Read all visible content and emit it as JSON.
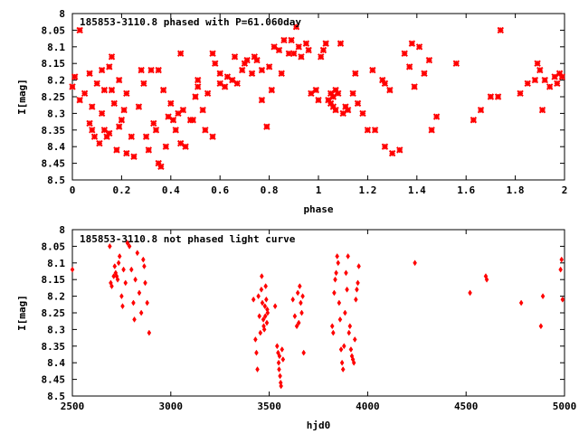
{
  "colors": {
    "points": "#ff0000",
    "axes": "#000000",
    "background": "#ffffff"
  },
  "chart_data": [
    {
      "type": "scatter",
      "title": "185853-3110.8 phased with P=61.060day",
      "xlabel": "phase",
      "ylabel": "I[mag]",
      "xlim": [
        0,
        2
      ],
      "ylim": [
        8.5,
        8.0
      ],
      "y_inverted": true,
      "grid": false,
      "x_ticks": [
        "0",
        "0.2",
        "0.4",
        "0.6",
        "0.8",
        "1",
        "1.2",
        "1.4",
        "1.6",
        "1.8",
        "2"
      ],
      "y_ticks": [
        "8",
        "8.05",
        "8.1",
        "8.15",
        "8.2",
        "8.25",
        "8.3",
        "8.35",
        "8.4",
        "8.45",
        "8.5"
      ],
      "marker": "x",
      "points": [
        [
          0.0,
          8.22
        ],
        [
          0.01,
          8.19
        ],
        [
          0.03,
          8.26
        ],
        [
          0.03,
          8.05
        ],
        [
          0.05,
          8.24
        ],
        [
          0.07,
          8.18
        ],
        [
          0.07,
          8.33
        ],
        [
          0.08,
          8.35
        ],
        [
          0.08,
          8.28
        ],
        [
          0.09,
          8.37
        ],
        [
          0.1,
          8.21
        ],
        [
          0.11,
          8.39
        ],
        [
          0.12,
          8.17
        ],
        [
          0.12,
          8.3
        ],
        [
          0.13,
          8.35
        ],
        [
          0.13,
          8.23
        ],
        [
          0.14,
          8.37
        ],
        [
          0.15,
          8.16
        ],
        [
          0.15,
          8.36
        ],
        [
          0.16,
          8.13
        ],
        [
          0.16,
          8.23
        ],
        [
          0.17,
          8.27
        ],
        [
          0.18,
          8.41
        ],
        [
          0.19,
          8.34
        ],
        [
          0.19,
          8.2
        ],
        [
          0.2,
          8.32
        ],
        [
          0.21,
          8.29
        ],
        [
          0.22,
          8.42
        ],
        [
          0.22,
          8.24
        ],
        [
          0.24,
          8.37
        ],
        [
          0.25,
          8.43
        ],
        [
          0.27,
          8.28
        ],
        [
          0.28,
          8.17
        ],
        [
          0.29,
          8.21
        ],
        [
          0.3,
          8.37
        ],
        [
          0.31,
          8.41
        ],
        [
          0.32,
          8.17
        ],
        [
          0.33,
          8.33
        ],
        [
          0.34,
          8.35
        ],
        [
          0.35,
          8.45
        ],
        [
          0.35,
          8.17
        ],
        [
          0.36,
          8.46
        ],
        [
          0.37,
          8.23
        ],
        [
          0.38,
          8.4
        ],
        [
          0.39,
          8.31
        ],
        [
          0.4,
          8.27
        ],
        [
          0.41,
          8.32
        ],
        [
          0.42,
          8.35
        ],
        [
          0.43,
          8.3
        ],
        [
          0.44,
          8.39
        ],
        [
          0.44,
          8.12
        ],
        [
          0.45,
          8.29
        ],
        [
          0.46,
          8.4
        ],
        [
          0.48,
          8.32
        ],
        [
          0.49,
          8.32
        ],
        [
          0.5,
          8.25
        ],
        [
          0.51,
          8.22
        ],
        [
          0.51,
          8.2
        ],
        [
          0.53,
          8.29
        ],
        [
          0.54,
          8.35
        ],
        [
          0.55,
          8.24
        ],
        [
          0.57,
          8.37
        ],
        [
          0.57,
          8.12
        ],
        [
          0.58,
          8.15
        ],
        [
          0.6,
          8.18
        ],
        [
          0.6,
          8.21
        ],
        [
          0.62,
          8.22
        ],
        [
          0.63,
          8.19
        ],
        [
          0.65,
          8.2
        ],
        [
          0.66,
          8.13
        ],
        [
          0.67,
          8.21
        ],
        [
          0.69,
          8.17
        ],
        [
          0.7,
          8.15
        ],
        [
          0.71,
          8.14
        ],
        [
          0.73,
          8.18
        ],
        [
          0.74,
          8.13
        ],
        [
          0.75,
          8.14
        ],
        [
          0.77,
          8.17
        ],
        [
          0.77,
          8.26
        ],
        [
          0.79,
          8.34
        ],
        [
          0.8,
          8.16
        ],
        [
          0.81,
          8.23
        ],
        [
          0.82,
          8.1
        ],
        [
          0.84,
          8.11
        ],
        [
          0.85,
          8.18
        ],
        [
          0.86,
          8.08
        ],
        [
          0.88,
          8.12
        ],
        [
          0.89,
          8.08
        ],
        [
          0.9,
          8.12
        ],
        [
          0.91,
          8.04
        ],
        [
          0.92,
          8.1
        ],
        [
          0.93,
          8.13
        ],
        [
          0.95,
          8.09
        ],
        [
          0.96,
          8.11
        ],
        [
          0.97,
          8.24
        ],
        [
          0.99,
          8.23
        ],
        [
          1.0,
          8.26
        ],
        [
          1.01,
          8.13
        ],
        [
          1.02,
          8.11
        ],
        [
          1.03,
          8.09
        ],
        [
          1.04,
          8.26
        ],
        [
          1.05,
          8.24
        ],
        [
          1.05,
          8.27
        ],
        [
          1.06,
          8.28
        ],
        [
          1.06,
          8.25
        ],
        [
          1.07,
          8.23
        ],
        [
          1.07,
          8.29
        ],
        [
          1.08,
          8.24
        ],
        [
          1.09,
          8.09
        ],
        [
          1.1,
          8.3
        ],
        [
          1.11,
          8.28
        ],
        [
          1.12,
          8.29
        ],
        [
          1.14,
          8.24
        ],
        [
          1.15,
          8.18
        ],
        [
          1.16,
          8.27
        ],
        [
          1.18,
          8.3
        ],
        [
          1.2,
          8.35
        ],
        [
          1.22,
          8.17
        ],
        [
          1.23,
          8.35
        ],
        [
          1.26,
          8.2
        ],
        [
          1.27,
          8.21
        ],
        [
          1.27,
          8.4
        ],
        [
          1.29,
          8.23
        ],
        [
          1.3,
          8.42
        ],
        [
          1.33,
          8.41
        ],
        [
          1.35,
          8.12
        ],
        [
          1.37,
          8.16
        ],
        [
          1.38,
          8.09
        ],
        [
          1.39,
          8.22
        ],
        [
          1.41,
          8.1
        ],
        [
          1.43,
          8.18
        ],
        [
          1.45,
          8.14
        ],
        [
          1.46,
          8.35
        ],
        [
          1.48,
          8.31
        ],
        [
          1.56,
          8.15
        ],
        [
          1.63,
          8.32
        ],
        [
          1.66,
          8.29
        ],
        [
          1.7,
          8.25
        ],
        [
          1.73,
          8.25
        ],
        [
          1.74,
          8.05
        ],
        [
          1.82,
          8.24
        ],
        [
          1.85,
          8.21
        ],
        [
          1.88,
          8.2
        ],
        [
          1.89,
          8.15
        ],
        [
          1.9,
          8.17
        ],
        [
          1.91,
          8.29
        ],
        [
          1.92,
          8.2
        ],
        [
          1.94,
          8.22
        ],
        [
          1.96,
          8.19
        ],
        [
          1.97,
          8.21
        ],
        [
          1.98,
          8.18
        ],
        [
          1.99,
          8.19
        ]
      ]
    },
    {
      "type": "scatter",
      "title": "185853-3110.8 not phased light curve",
      "xlabel": "hjd0",
      "ylabel": "I[mag]",
      "xlim": [
        2500,
        5000
      ],
      "ylim": [
        8.5,
        8.0
      ],
      "y_inverted": true,
      "grid": false,
      "x_ticks": [
        "2500",
        "3000",
        "3500",
        "4000",
        "4500",
        "5000"
      ],
      "y_ticks": [
        "8",
        "8.05",
        "8.1",
        "8.15",
        "8.2",
        "8.25",
        "8.3",
        "8.35",
        "8.4",
        "8.45",
        "8.5"
      ],
      "marker": "diamond",
      "points": [
        [
          2500,
          8.12
        ],
        [
          2690,
          8.05
        ],
        [
          2695,
          8.16
        ],
        [
          2700,
          8.17
        ],
        [
          2710,
          8.14
        ],
        [
          2715,
          8.11
        ],
        [
          2720,
          8.13
        ],
        [
          2725,
          8.14
        ],
        [
          2730,
          8.15
        ],
        [
          2735,
          8.1
        ],
        [
          2740,
          8.08
        ],
        [
          2750,
          8.2
        ],
        [
          2755,
          8.23
        ],
        [
          2760,
          8.12
        ],
        [
          2770,
          8.16
        ],
        [
          2780,
          8.04
        ],
        [
          2790,
          8.05
        ],
        [
          2800,
          8.12
        ],
        [
          2810,
          8.22
        ],
        [
          2815,
          8.27
        ],
        [
          2820,
          8.15
        ],
        [
          2830,
          8.07
        ],
        [
          2840,
          8.19
        ],
        [
          2850,
          8.25
        ],
        [
          2860,
          8.09
        ],
        [
          2865,
          8.11
        ],
        [
          2870,
          8.16
        ],
        [
          2880,
          8.22
        ],
        [
          2890,
          8.31
        ],
        [
          3420,
          8.21
        ],
        [
          3430,
          8.33
        ],
        [
          3435,
          8.37
        ],
        [
          3440,
          8.42
        ],
        [
          3445,
          8.2
        ],
        [
          3450,
          8.26
        ],
        [
          3455,
          8.31
        ],
        [
          3460,
          8.18
        ],
        [
          3462,
          8.14
        ],
        [
          3465,
          8.22
        ],
        [
          3470,
          8.27
        ],
        [
          3472,
          8.29
        ],
        [
          3475,
          8.3
        ],
        [
          3478,
          8.23
        ],
        [
          3480,
          8.26
        ],
        [
          3482,
          8.17
        ],
        [
          3485,
          8.21
        ],
        [
          3488,
          8.28
        ],
        [
          3490,
          8.24
        ],
        [
          3492,
          8.25
        ],
        [
          3530,
          8.23
        ],
        [
          3540,
          8.35
        ],
        [
          3545,
          8.37
        ],
        [
          3548,
          8.4
        ],
        [
          3550,
          8.42
        ],
        [
          3552,
          8.38
        ],
        [
          3555,
          8.44
        ],
        [
          3558,
          8.46
        ],
        [
          3560,
          8.47
        ],
        [
          3565,
          8.36
        ],
        [
          3570,
          8.39
        ],
        [
          3620,
          8.21
        ],
        [
          3630,
          8.26
        ],
        [
          3640,
          8.29
        ],
        [
          3645,
          8.19
        ],
        [
          3650,
          8.28
        ],
        [
          3655,
          8.17
        ],
        [
          3660,
          8.22
        ],
        [
          3665,
          8.25
        ],
        [
          3670,
          8.2
        ],
        [
          3675,
          8.37
        ],
        [
          3820,
          8.29
        ],
        [
          3825,
          8.31
        ],
        [
          3830,
          8.19
        ],
        [
          3835,
          8.15
        ],
        [
          3840,
          8.13
        ],
        [
          3845,
          8.08
        ],
        [
          3850,
          8.1
        ],
        [
          3855,
          8.22
        ],
        [
          3860,
          8.27
        ],
        [
          3865,
          8.36
        ],
        [
          3870,
          8.4
        ],
        [
          3875,
          8.42
        ],
        [
          3880,
          8.35
        ],
        [
          3885,
          8.25
        ],
        [
          3890,
          8.13
        ],
        [
          3895,
          8.18
        ],
        [
          3900,
          8.08
        ],
        [
          3905,
          8.31
        ],
        [
          3910,
          8.29
        ],
        [
          3915,
          8.36
        ],
        [
          3920,
          8.38
        ],
        [
          3925,
          8.39
        ],
        [
          3930,
          8.4
        ],
        [
          3935,
          8.33
        ],
        [
          3940,
          8.21
        ],
        [
          3945,
          8.18
        ],
        [
          3950,
          8.16
        ],
        [
          3955,
          8.11
        ],
        [
          4240,
          8.1
        ],
        [
          4520,
          8.19
        ],
        [
          4600,
          8.14
        ],
        [
          4605,
          8.15
        ],
        [
          4780,
          8.22
        ],
        [
          4880,
          8.29
        ],
        [
          4890,
          8.2
        ],
        [
          4980,
          8.12
        ],
        [
          4985,
          8.09
        ],
        [
          4990,
          8.21
        ]
      ]
    }
  ]
}
